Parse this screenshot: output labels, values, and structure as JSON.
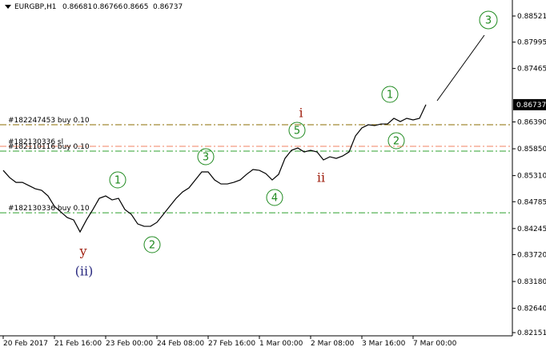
{
  "header": {
    "symbol": "EURGBP,H1",
    "open": 0.86681,
    "high": 0.86766,
    "low": 0.8665,
    "close": 0.86737
  },
  "chart_data": {
    "type": "line",
    "color": "#000000",
    "categories": [
      "20 Feb 2017",
      null,
      null,
      null,
      null,
      null,
      null,
      null,
      "21 Feb 16:00",
      null,
      null,
      null,
      null,
      null,
      null,
      null,
      "23 Feb 00:00",
      null,
      null,
      null,
      null,
      null,
      null,
      null,
      "24 Feb 08:00",
      null,
      null,
      null,
      null,
      null,
      null,
      null,
      "27 Feb 16:00",
      null,
      null,
      null,
      null,
      null,
      null,
      null,
      "1 Mar 00:00",
      null,
      null,
      null,
      null,
      null,
      null,
      null,
      "2 Mar 08:00",
      null,
      null,
      null,
      null,
      null,
      null,
      null,
      "3 Mar 16:00",
      null,
      null,
      null,
      null,
      null,
      null,
      null,
      "7 Mar 00:00",
      null,
      null
    ],
    "values": [
      0.85416,
      0.85271,
      0.85174,
      0.85174,
      0.8511,
      0.85046,
      0.85014,
      0.84901,
      0.84692,
      0.84579,
      0.84467,
      0.84418,
      0.84177,
      0.84418,
      0.84627,
      0.84853,
      0.84901,
      0.84821,
      0.84853,
      0.84627,
      0.84531,
      0.84338,
      0.8429,
      0.8429,
      0.8437,
      0.84531,
      0.84692,
      0.84853,
      0.84981,
      0.85062,
      0.85223,
      0.85384,
      0.85384,
      0.85223,
      0.85142,
      0.85142,
      0.85174,
      0.85223,
      0.85335,
      0.85432,
      0.85416,
      0.85351,
      0.85223,
      0.85335,
      0.85657,
      0.85818,
      0.85866,
      0.85786,
      0.85818,
      0.85786,
      0.85625,
      0.85689,
      0.85657,
      0.85705,
      0.85786,
      0.86108,
      0.86269,
      0.86333,
      0.86317,
      0.86349,
      0.86349,
      0.86462,
      0.86397,
      0.86462,
      0.8643,
      0.86462,
      0.86737
    ],
    "ylim": [
      0.82087,
      0.88843
    ],
    "yticks": [
      0.88521,
      0.87995,
      0.87465,
      {
        "value": 0.8639,
        "label": "0.86390"
      },
      {
        "value": 0.8585,
        "label": "0.85850"
      },
      {
        "value": 0.8531,
        "label": "0.85310"
      },
      0.84785,
      0.84245,
      {
        "value": 0.8372,
        "label": "0.83720"
      },
      {
        "value": 0.8318,
        "label": "0.83180"
      },
      {
        "value": 0.8264,
        "label": "0.82640"
      },
      0.82151
    ],
    "orders": [
      {
        "label": "#182247453 buy 0.10",
        "value": 0.86333,
        "color": "#8b6d00"
      },
      {
        "label": "#182130336 sl",
        "value": 0.85899,
        "color": "#f08060"
      },
      {
        "label": "#182110116 buy 0.10",
        "value": 0.85802,
        "color": "#2fa02f"
      },
      {
        "label": "#182130336 buy 0.10",
        "value": 0.84563,
        "color": "#2fa02f"
      }
    ],
    "annotations": {
      "waves": [
        "1",
        "2",
        "3",
        "4",
        "5",
        "1",
        "2",
        "3"
      ],
      "roman_i": "i",
      "roman_ii": "ii",
      "y": "y",
      "ii_paren": "(ii)"
    }
  }
}
